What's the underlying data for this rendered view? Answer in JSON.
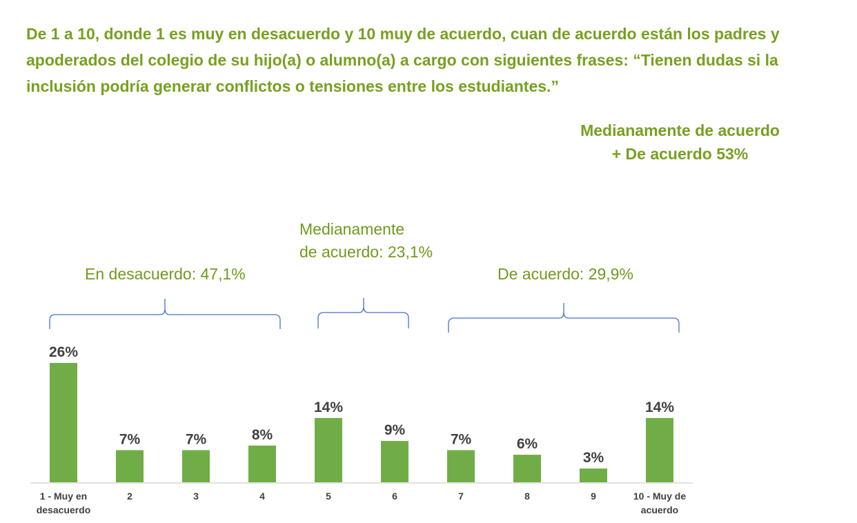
{
  "title": "De 1 a 10, donde 1 es muy en desacuerdo y 10 muy de acuerdo, cuan de acuerdo están los padres y apoderados del colegio de su hijo(a) o alumno(a) a cargo con siguientes frases: “Tienen dudas si la inclusión podría generar conflictos o tensiones entre los estudiantes.”",
  "summary": {
    "line1": "Medianamente de acuerdo",
    "line2": "+ De acuerdo 53%"
  },
  "groups": [
    {
      "label": "En desacuerdo: 47,1%",
      "from": 0,
      "to": 3
    },
    {
      "label_lines": [
        "Medianamente",
        "de acuerdo: 23,1%"
      ],
      "from": 4,
      "to": 5
    },
    {
      "label": "De acuerdo: 29,9%",
      "from": 6,
      "to": 9
    }
  ],
  "colors": {
    "bar": "#70ad47",
    "title": "#77a020",
    "brace": "#4472c4",
    "value_label": "#404040"
  },
  "chart_data": {
    "type": "bar",
    "categories": [
      [
        "1 - Muy en",
        "desacuerdo"
      ],
      [
        "2"
      ],
      [
        "3"
      ],
      [
        "4"
      ],
      [
        "5"
      ],
      [
        "6"
      ],
      [
        "7"
      ],
      [
        "8"
      ],
      [
        "9"
      ],
      [
        "10 - Muy de",
        "acuerdo"
      ]
    ],
    "values": [
      26,
      7,
      7,
      8,
      14,
      9,
      7,
      6,
      3,
      14
    ],
    "value_labels": [
      "26%",
      "7%",
      "7%",
      "8%",
      "14%",
      "9%",
      "7%",
      "6%",
      "3%",
      "14%"
    ],
    "ylim": [
      0,
      26
    ],
    "grid": false
  }
}
